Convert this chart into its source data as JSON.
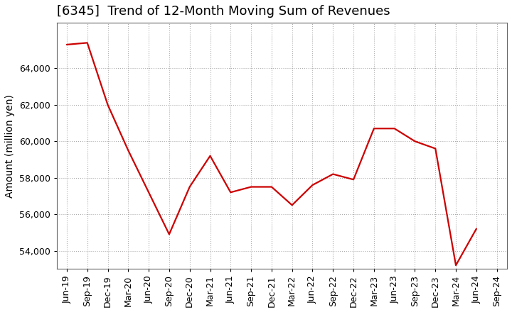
{
  "title": "[6345]  Trend of 12-Month Moving Sum of Revenues",
  "ylabel": "Amount (million yen)",
  "line_color": "#cc0000",
  "background_color": "#ffffff",
  "plot_bg_color": "#ffffff",
  "grid_color": "#999999",
  "x_labels": [
    "Jun-19",
    "Sep-19",
    "Dec-19",
    "Mar-20",
    "Jun-20",
    "Sep-20",
    "Dec-20",
    "Mar-21",
    "Jun-21",
    "Sep-21",
    "Dec-21",
    "Mar-22",
    "Jun-22",
    "Sep-22",
    "Dec-22",
    "Mar-23",
    "Jun-23",
    "Sep-23",
    "Dec-23",
    "Mar-24",
    "Jun-24",
    "Sep-24"
  ],
  "values": [
    65300,
    65400,
    62000,
    59500,
    57200,
    54900,
    57500,
    59200,
    57200,
    57500,
    57500,
    56500,
    57600,
    58200,
    57900,
    60700,
    60700,
    60000,
    59600,
    53200,
    55200,
    null
  ],
  "ylim": [
    53000,
    66500
  ],
  "yticks": [
    54000,
    56000,
    58000,
    60000,
    62000,
    64000
  ],
  "title_fontsize": 13,
  "label_fontsize": 10,
  "tick_fontsize": 9
}
